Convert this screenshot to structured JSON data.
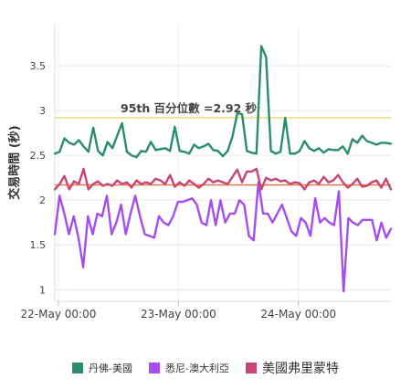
{
  "chart_data": {
    "type": "line",
    "ylabel": "交易時間 (秒)",
    "ylim": [
      0.87,
      3.97
    ],
    "yticks": [
      1,
      1.5,
      2,
      2.5,
      3,
      3.5
    ],
    "xlim": [
      -0.03,
      2.77
    ],
    "xticks": [
      {
        "value": 0,
        "label": "22-May 00:00"
      },
      {
        "value": 1,
        "label": "23-May 00:00"
      },
      {
        "value": 2,
        "label": "24-May 00:00"
      }
    ],
    "x_unit": "days since 22-May 00:00",
    "grid": true,
    "legend_position": "bottom",
    "threshold_lines": [
      {
        "label": "95th 百分位數 =2.92 秒",
        "value": 2.92,
        "color": "#e6e07a"
      },
      {
        "value": 2.17,
        "color": "#e8764a"
      }
    ],
    "series": [
      {
        "name": "丹佛-美國",
        "color": "#2a8c6e",
        "values": [
          2.52,
          2.54,
          2.69,
          2.64,
          2.62,
          2.67,
          2.6,
          2.54,
          2.81,
          2.55,
          2.5,
          2.65,
          2.58,
          2.72,
          2.86,
          2.54,
          2.5,
          2.48,
          2.55,
          2.54,
          2.65,
          2.56,
          2.57,
          2.58,
          2.55,
          2.82,
          2.55,
          2.54,
          2.52,
          2.62,
          2.58,
          2.6,
          2.63,
          2.56,
          2.55,
          2.49,
          2.55,
          2.71,
          2.97,
          2.96,
          2.55,
          2.53,
          2.52,
          3.72,
          3.6,
          2.55,
          2.52,
          2.54,
          2.92,
          2.52,
          2.52,
          2.55,
          2.66,
          2.58,
          2.55,
          2.58,
          2.53,
          2.57,
          2.56,
          2.56,
          2.6,
          2.52,
          2.68,
          2.64,
          2.72,
          2.66,
          2.64,
          2.62,
          2.64,
          2.64,
          2.63
        ]
      },
      {
        "name": "悉尼-澳大利亞",
        "color": "#a64df0",
        "values": [
          1.62,
          2.05,
          1.85,
          1.62,
          1.82,
          1.58,
          1.25,
          1.82,
          1.62,
          1.85,
          1.82,
          2.05,
          1.62,
          1.75,
          1.95,
          1.62,
          1.85,
          2.05,
          1.82,
          1.62,
          1.6,
          1.58,
          1.82,
          1.75,
          1.72,
          1.82,
          1.98,
          1.98,
          2.0,
          2.02,
          1.95,
          1.75,
          1.72,
          2.0,
          1.72,
          2.0,
          1.75,
          1.85,
          1.85,
          2.0,
          1.95,
          1.6,
          1.55,
          2.2,
          1.85,
          1.85,
          1.75,
          1.85,
          1.95,
          1.8,
          1.65,
          1.6,
          1.8,
          1.75,
          1.6,
          2.02,
          1.75,
          1.8,
          1.75,
          1.72,
          2.1,
          0.98,
          1.8,
          1.75,
          1.72,
          1.78,
          1.78,
          1.78,
          1.55,
          1.75,
          1.58,
          1.68
        ]
      },
      {
        "name": "美國弗里蒙特",
        "color": "#c7466f",
        "values": [
          2.12,
          2.18,
          2.27,
          2.12,
          2.21,
          2.18,
          2.35,
          2.12,
          2.18,
          2.21,
          2.16,
          2.18,
          2.16,
          2.22,
          2.18,
          2.2,
          2.14,
          2.22,
          2.18,
          2.2,
          2.18,
          2.24,
          2.22,
          2.18,
          2.28,
          2.15,
          2.2,
          2.16,
          2.22,
          2.18,
          2.14,
          2.18,
          2.24,
          2.2,
          2.22,
          2.2,
          2.18,
          2.26,
          2.34,
          2.2,
          2.32,
          2.32,
          2.35,
          2.12,
          2.25,
          2.22,
          2.24,
          2.21,
          2.22,
          2.18,
          2.2,
          2.19,
          2.12,
          2.2,
          2.22,
          2.18,
          2.26,
          2.2,
          2.22,
          2.28,
          2.2,
          2.14,
          2.18,
          2.24,
          2.15,
          2.16,
          2.2,
          2.22,
          2.14,
          2.24,
          2.12
        ]
      }
    ]
  }
}
